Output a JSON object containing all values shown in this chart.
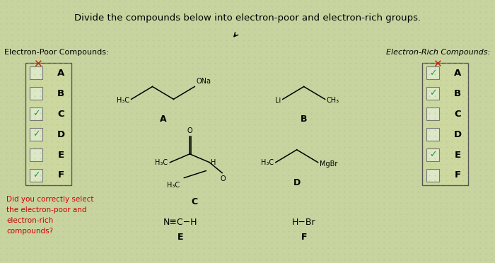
{
  "title": "Divide the compounds below into electron-poor and electron-rich groups.",
  "title_fontsize": 9.5,
  "bg_color": "#c8d4a0",
  "left_label": "Electron-Poor Compounds:",
  "right_label": "Electron-Rich Compounds:",
  "left_checked": [
    false,
    false,
    true,
    true,
    false,
    true
  ],
  "right_checked": [
    true,
    true,
    false,
    false,
    true,
    false
  ],
  "letters": [
    "A",
    "B",
    "C",
    "D",
    "E",
    "F"
  ],
  "red_text": "Did you correctly select\nthe electron-poor and\nelectron-rich\ncompounds?",
  "red_color": "#cc0000",
  "box_facecolor": "#ccd8a0",
  "check_color": "#229944",
  "dark": "black"
}
